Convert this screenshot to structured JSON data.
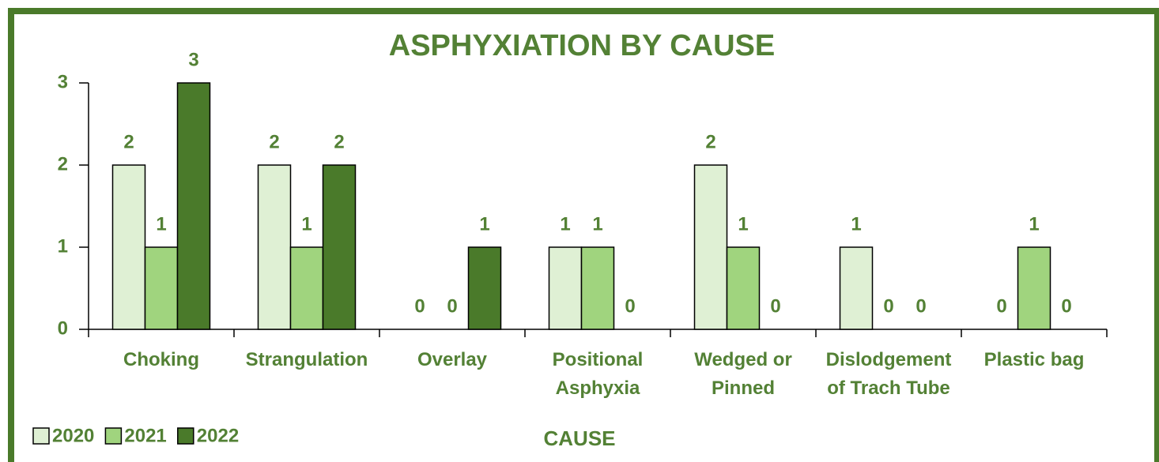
{
  "chart_data": {
    "type": "bar",
    "title": "ASPHYXIATION BY CAUSE",
    "x_label": "CAUSE",
    "categories": [
      "Choking",
      "Strangulation",
      "Overlay",
      "Positional\nAsphyxia",
      "Wedged or\nPinned",
      "Dislodgement\nof Trach Tube",
      "Plastic bag"
    ],
    "series": [
      {
        "name": "2020",
        "color": "#dff0d4",
        "values": [
          2,
          2,
          0,
          1,
          2,
          1,
          0
        ]
      },
      {
        "name": "2021",
        "color": "#a0d47e",
        "values": [
          1,
          1,
          0,
          1,
          1,
          0,
          1
        ]
      },
      {
        "name": "2022",
        "color": "#4a7a2a",
        "values": [
          3,
          2,
          1,
          0,
          0,
          0,
          0
        ]
      }
    ],
    "ylim": [
      0,
      3
    ],
    "yticks": [
      0,
      1,
      2,
      3
    ],
    "grid": false,
    "legend": "bottom-left"
  }
}
